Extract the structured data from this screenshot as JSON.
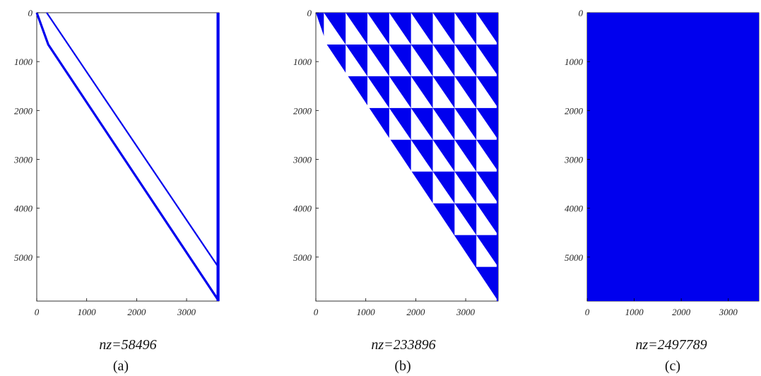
{
  "chart_data": [
    {
      "type": "spy",
      "panel_label": "(a)",
      "nz_label": "nz=58496",
      "xlim": [
        0,
        3650
      ],
      "ylim": [
        5900,
        0
      ],
      "x_ticks": [
        0,
        1000,
        2000,
        3000
      ],
      "y_ticks": [
        0,
        1000,
        2000,
        3000,
        4000,
        5000
      ],
      "pattern": "two diagonal bands plus a dense last column",
      "color": "#0000ee"
    },
    {
      "type": "spy",
      "panel_label": "(b)",
      "nz_label": "nz=233896",
      "xlim": [
        0,
        3650
      ],
      "ylim": [
        5900,
        0
      ],
      "x_ticks": [
        0,
        1000,
        2000,
        3000
      ],
      "y_ticks": [
        0,
        1000,
        2000,
        3000,
        4000,
        5000
      ],
      "pattern": "upper-triangular fill with triangular block holes",
      "color": "#0000ee"
    },
    {
      "type": "spy",
      "panel_label": "(c)",
      "nz_label": "nz=2497789",
      "xlim": [
        0,
        3650
      ],
      "ylim": [
        5900,
        0
      ],
      "x_ticks": [
        0,
        1000,
        2000,
        3000
      ],
      "y_ticks": [
        0,
        1000,
        2000,
        3000,
        4000,
        5000
      ],
      "pattern": "fully dense",
      "color": "#0000ee"
    }
  ]
}
